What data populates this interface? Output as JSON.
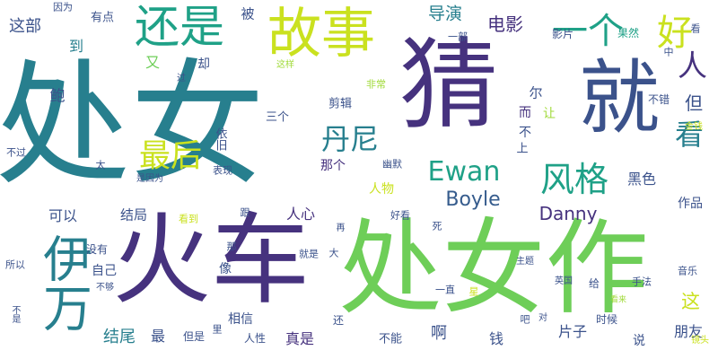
{
  "palette": {
    "dark_purple": "#46327e",
    "navy": "#3b528b",
    "blue": "#365c8d",
    "teal": "#277f8e",
    "green_teal": "#1fa187",
    "green": "#4ac16d",
    "light_green": "#6ece58",
    "lime": "#a0da39",
    "yellow": "#cae11f",
    "bright_yellow": "#fde725"
  },
  "words": [
    "处女",
    "猜",
    "就",
    "火车",
    "处女作",
    "故事",
    "还是",
    "伊万",
    "好",
    "一个",
    "人",
    "丹尼",
    "看",
    "最后",
    "风格",
    "Ewan",
    "Boyle",
    "Danny",
    "电影",
    "导演",
    "这部",
    "到",
    "又",
    "鲍",
    "但",
    "尔",
    "而",
    "让",
    "不",
    "上",
    "黑色",
    "人物",
    "那个",
    "可以",
    "结局",
    "人心",
    "自己",
    "像",
    "结尾",
    "最",
    "相信",
    "人性",
    "真是",
    "啊",
    "钱",
    "片子",
    "这",
    "朋友",
    "说",
    "作品",
    "剪辑",
    "三个",
    "依旧",
    "却",
    "被",
    "有点",
    "因为",
    "一部",
    "影片",
    "果然",
    "看",
    "中",
    "不错",
    "这样",
    "过",
    "非常",
    "金钱",
    "不过",
    "太",
    "表现",
    "是因为",
    "看到",
    "跟",
    "那",
    "就是",
    "大",
    "好看",
    "死",
    "再",
    "没有",
    "所以",
    "不够",
    "不是",
    "但是",
    "里",
    "还",
    "不能",
    "一直",
    "星",
    "主题",
    "英国",
    "给",
    "手法",
    "音乐",
    "看来",
    "吧",
    "对",
    "时候",
    "镜头",
    "幽默"
  ]
}
